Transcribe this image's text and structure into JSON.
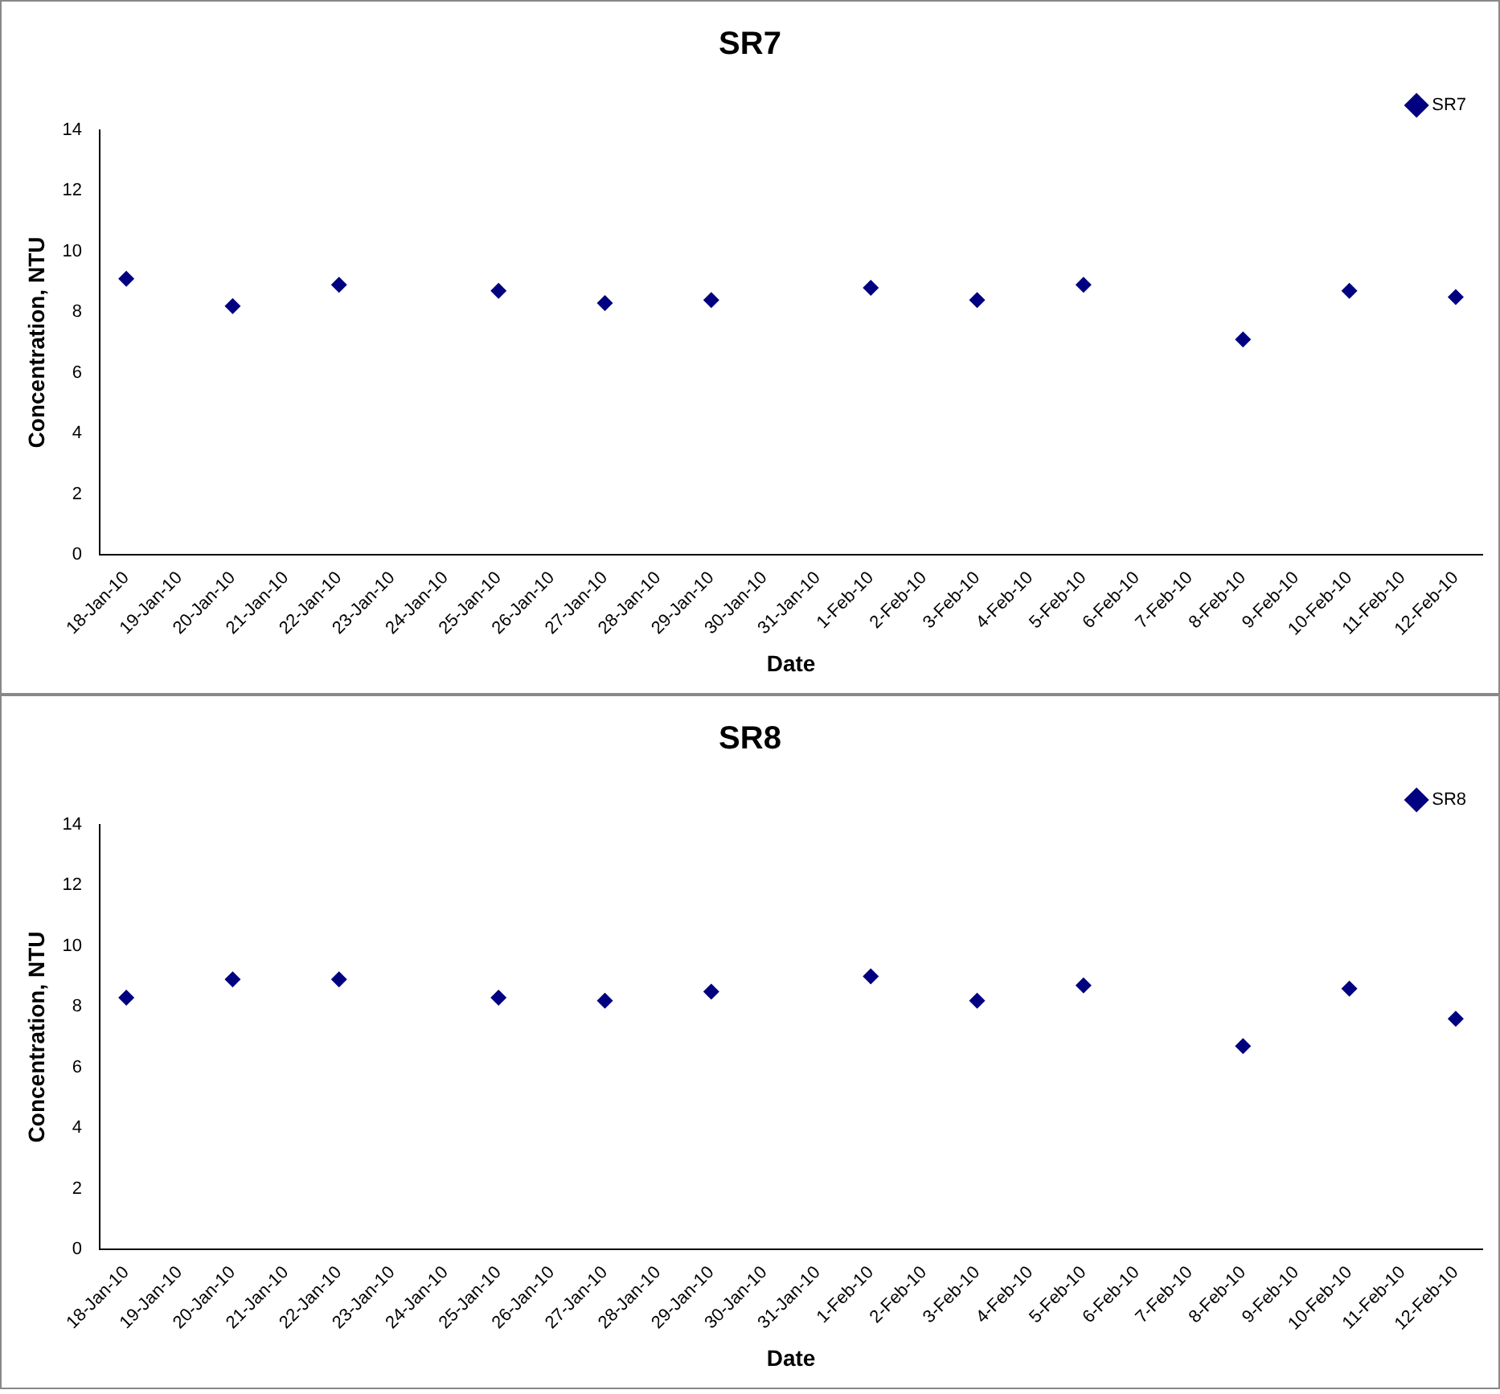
{
  "chart_data": [
    {
      "type": "scatter",
      "title": "SR7",
      "xlabel": "Date",
      "ylabel": "Concentration, NTU",
      "categories": [
        "18-Jan-10",
        "19-Jan-10",
        "20-Jan-10",
        "21-Jan-10",
        "22-Jan-10",
        "23-Jan-10",
        "24-Jan-10",
        "25-Jan-10",
        "26-Jan-10",
        "27-Jan-10",
        "28-Jan-10",
        "29-Jan-10",
        "30-Jan-10",
        "31-Jan-10",
        "1-Feb-10",
        "2-Feb-10",
        "3-Feb-10",
        "4-Feb-10",
        "5-Feb-10",
        "6-Feb-10",
        "7-Feb-10",
        "8-Feb-10",
        "9-Feb-10",
        "10-Feb-10",
        "11-Feb-10",
        "12-Feb-10"
      ],
      "series": [
        {
          "name": "SR7",
          "color": "#000080",
          "values": [
            9.1,
            null,
            8.2,
            null,
            8.9,
            null,
            null,
            8.7,
            null,
            8.3,
            null,
            8.4,
            null,
            null,
            8.8,
            null,
            8.4,
            null,
            8.9,
            null,
            null,
            7.1,
            null,
            8.7,
            null,
            8.5
          ]
        }
      ],
      "ylim": [
        0,
        14
      ],
      "yticks": [
        0,
        2,
        4,
        6,
        8,
        10,
        12,
        14
      ],
      "grid": false,
      "legend": "top right",
      "marker": "diamond"
    },
    {
      "type": "scatter",
      "title": "SR8",
      "xlabel": "Date",
      "ylabel": "Concentration, NTU",
      "categories": [
        "18-Jan-10",
        "19-Jan-10",
        "20-Jan-10",
        "21-Jan-10",
        "22-Jan-10",
        "23-Jan-10",
        "24-Jan-10",
        "25-Jan-10",
        "26-Jan-10",
        "27-Jan-10",
        "28-Jan-10",
        "29-Jan-10",
        "30-Jan-10",
        "31-Jan-10",
        "1-Feb-10",
        "2-Feb-10",
        "3-Feb-10",
        "4-Feb-10",
        "5-Feb-10",
        "6-Feb-10",
        "7-Feb-10",
        "8-Feb-10",
        "9-Feb-10",
        "10-Feb-10",
        "11-Feb-10",
        "12-Feb-10"
      ],
      "series": [
        {
          "name": "SR8",
          "color": "#000080",
          "values": [
            8.3,
            null,
            8.9,
            null,
            8.9,
            null,
            null,
            8.3,
            null,
            8.2,
            null,
            8.5,
            null,
            null,
            9.0,
            null,
            8.2,
            null,
            8.7,
            null,
            null,
            6.7,
            null,
            8.6,
            null,
            7.6
          ]
        }
      ],
      "ylim": [
        0,
        14
      ],
      "yticks": [
        0,
        2,
        4,
        6,
        8,
        10,
        12,
        14
      ],
      "grid": false,
      "legend": "top right",
      "marker": "diamond"
    }
  ]
}
